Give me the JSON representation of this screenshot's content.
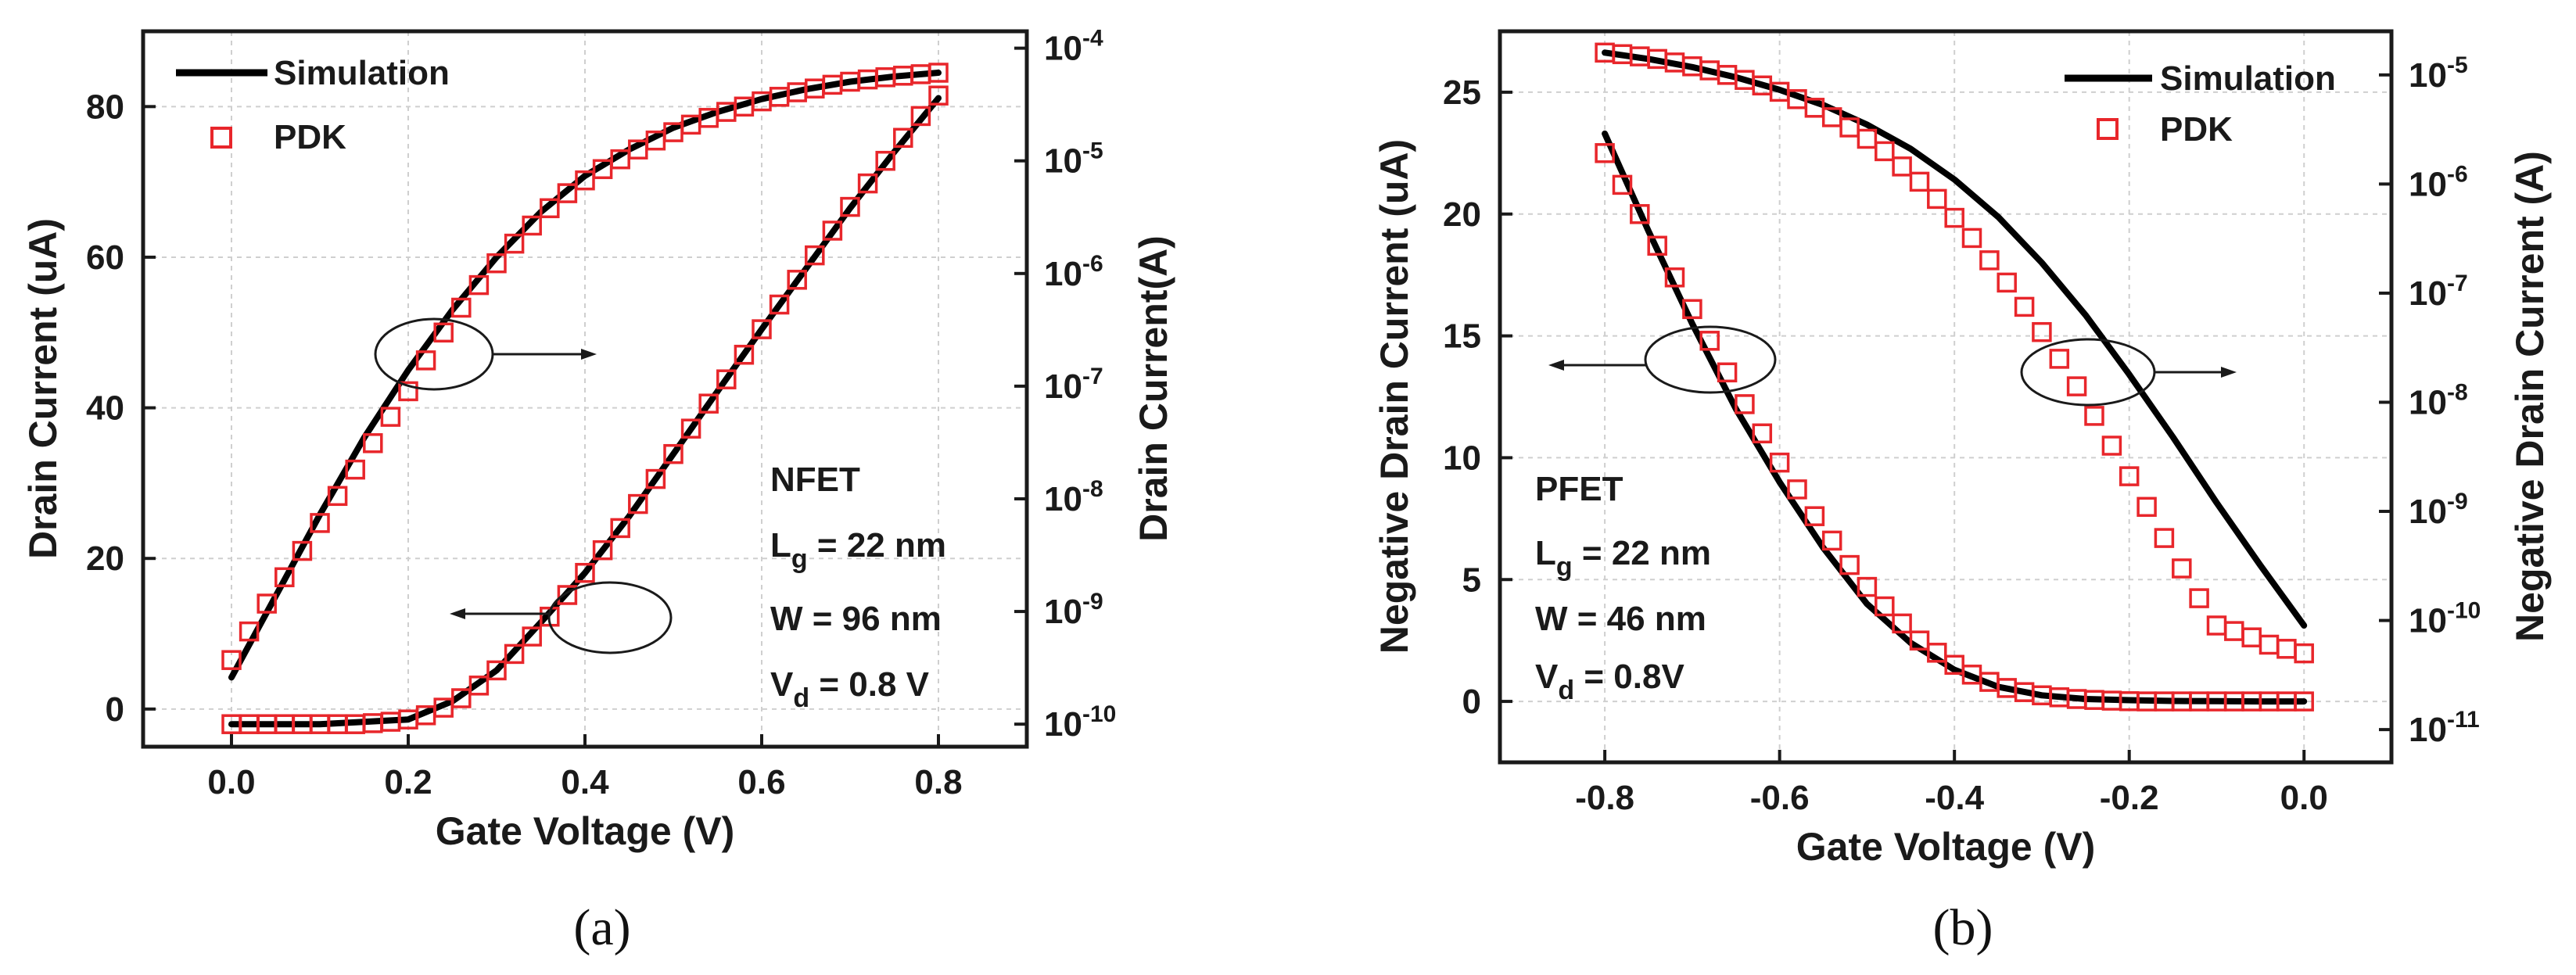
{
  "chart_data": [
    {
      "type": "line",
      "caption": "(a)",
      "xlabel": "Gate Voltage (V)",
      "ylabel_left": "Drain Current (uA)",
      "ylabel_right": "Drain Current(A)",
      "xlim": [
        -0.1,
        0.9
      ],
      "ylim_left": [
        -5,
        90
      ],
      "ylim_right_log": [
        -10.2,
        -3.85
      ],
      "x_ticks": [
        "0.0",
        "0.2",
        "0.4",
        "0.6",
        "0.8"
      ],
      "y_ticks_left": [
        "0",
        "20",
        "40",
        "60",
        "80"
      ],
      "y_ticks_right_exponents": [
        "-10",
        "-9",
        "-8",
        "-7",
        "-6",
        "-5",
        "-4"
      ],
      "log_tick_base": "10",
      "grid": true,
      "legend": {
        "position": "top-left",
        "entries": [
          "Simulation",
          "PDK"
        ]
      },
      "annotations": [
        {
          "text": "NFET"
        },
        {
          "text_main": "L",
          "text_sub": "g",
          "text_rest": " = 22 nm"
        },
        {
          "text": "W = 96 nm"
        },
        {
          "text_main": "V",
          "text_sub": "d",
          "text_rest": " = 0.8 V"
        }
      ],
      "series": [
        {
          "name": "Simulation",
          "axis": "left",
          "style": "line",
          "color": "#000000",
          "x": [
            0.0,
            0.05,
            0.1,
            0.15,
            0.2,
            0.25,
            0.3,
            0.35,
            0.4,
            0.45,
            0.5,
            0.55,
            0.6,
            0.65,
            0.7,
            0.75,
            0.8
          ],
          "y": [
            4.2,
            15.0,
            25.8,
            36.0,
            45.0,
            53.0,
            60.0,
            66.0,
            70.8,
            74.3,
            77.2,
            79.3,
            81.0,
            82.3,
            83.3,
            84.0,
            84.5
          ]
        },
        {
          "name": "PDK",
          "axis": "left",
          "style": "markers",
          "color": "#e8262b",
          "x": [
            0.0,
            0.02,
            0.04,
            0.06,
            0.08,
            0.1,
            0.12,
            0.14,
            0.16,
            0.18,
            0.2,
            0.22,
            0.24,
            0.26,
            0.28,
            0.3,
            0.32,
            0.34,
            0.36,
            0.38,
            0.4,
            0.42,
            0.44,
            0.46,
            0.48,
            0.5,
            0.52,
            0.54,
            0.56,
            0.58,
            0.6,
            0.62,
            0.64,
            0.66,
            0.68,
            0.7,
            0.72,
            0.74,
            0.76,
            0.78,
            0.8
          ],
          "y": [
            6.5,
            10.3,
            14.0,
            17.5,
            21.0,
            24.7,
            28.3,
            31.8,
            35.3,
            38.8,
            42.2,
            46.3,
            50.0,
            53.3,
            56.3,
            59.2,
            61.8,
            64.2,
            66.5,
            68.5,
            70.2,
            71.7,
            73.0,
            74.3,
            75.5,
            76.6,
            77.6,
            78.5,
            79.3,
            80.0,
            80.7,
            81.3,
            81.9,
            82.4,
            82.9,
            83.3,
            83.6,
            83.9,
            84.1,
            84.3,
            84.5
          ]
        },
        {
          "name": "Simulation",
          "axis": "right",
          "style": "line",
          "color": "#000000",
          "x": [
            0.0,
            0.1,
            0.2,
            0.25,
            0.3,
            0.35,
            0.4,
            0.45,
            0.5,
            0.55,
            0.6,
            0.65,
            0.7,
            0.75,
            0.8
          ],
          "y": [
            1e-10,
            1e-10,
            1.1e-10,
            1.6e-10,
            3e-10,
            8e-10,
            2.2e-09,
            7e-09,
            2.5e-08,
            9e-08,
            3.2e-07,
            1.1e-06,
            3.8e-06,
            1.2e-05,
            3.6e-05
          ]
        },
        {
          "name": "PDK",
          "axis": "right",
          "style": "markers",
          "color": "#e8262b",
          "x": [
            0.0,
            0.02,
            0.04,
            0.06,
            0.08,
            0.1,
            0.12,
            0.14,
            0.16,
            0.18,
            0.2,
            0.22,
            0.24,
            0.26,
            0.28,
            0.3,
            0.32,
            0.34,
            0.36,
            0.38,
            0.4,
            0.42,
            0.44,
            0.46,
            0.48,
            0.5,
            0.52,
            0.54,
            0.56,
            0.58,
            0.6,
            0.62,
            0.64,
            0.66,
            0.68,
            0.7,
            0.72,
            0.74,
            0.76,
            0.78,
            0.8
          ],
          "y": [
            1e-10,
            1e-10,
            1e-10,
            1e-10,
            1e-10,
            1e-10,
            1e-10,
            1e-10,
            1.02e-10,
            1.05e-10,
            1.1e-10,
            1.2e-10,
            1.4e-10,
            1.7e-10,
            2.2e-10,
            3e-10,
            4.2e-10,
            6e-10,
            9e-10,
            1.4e-09,
            2.2e-09,
            3.5e-09,
            5.5e-09,
            9e-09,
            1.5e-08,
            2.5e-08,
            4.2e-08,
            7e-08,
            1.15e-07,
            1.9e-07,
            3.2e-07,
            5.3e-07,
            8.8e-07,
            1.45e-06,
            2.4e-06,
            3.9e-06,
            6.3e-06,
            1e-05,
            1.6e-05,
            2.5e-05,
            3.8e-05
          ]
        }
      ]
    },
    {
      "type": "line",
      "caption": "(b)",
      "xlabel": "Gate Voltage (V)",
      "ylabel_left": "Negative Drain Current (uA)",
      "ylabel_right": "Negative Drain Current (A)",
      "xlim": [
        -0.92,
        0.1
      ],
      "ylim_left": [
        -2.5,
        27.5
      ],
      "ylim_right_log": [
        -11.3,
        -4.6
      ],
      "x_ticks": [
        "-0.8",
        "-0.6",
        "-0.4",
        "-0.2",
        "0.0"
      ],
      "y_ticks_left": [
        "0",
        "5",
        "10",
        "15",
        "20",
        "25"
      ],
      "y_ticks_right_exponents": [
        "-11",
        "-10",
        "-9",
        "-8",
        "-7",
        "-6",
        "-5"
      ],
      "log_tick_base": "10",
      "grid": true,
      "legend": {
        "position": "top-right",
        "entries": [
          "Simulation",
          "PDK"
        ]
      },
      "annotations": [
        {
          "text": "PFET"
        },
        {
          "text_main": "L",
          "text_sub": "g",
          "text_rest": " = 22 nm"
        },
        {
          "text": "W = 46 nm"
        },
        {
          "text_main": "V",
          "text_sub": "d",
          "text_rest": " = 0.8V"
        }
      ],
      "series": [
        {
          "name": "Simulation",
          "axis": "left",
          "style": "line",
          "color": "#000000",
          "x": [
            -0.8,
            -0.75,
            -0.7,
            -0.65,
            -0.6,
            -0.55,
            -0.5,
            -0.45,
            -0.4,
            -0.35,
            -0.3,
            -0.25,
            -0.2,
            -0.15,
            -0.1,
            -0.05,
            0.0
          ],
          "y": [
            23.3,
            19.3,
            15.5,
            12.0,
            9.0,
            6.3,
            4.0,
            2.4,
            1.3,
            0.6,
            0.25,
            0.1,
            0.05,
            0.02,
            0.01,
            0.0,
            0.0
          ]
        },
        {
          "name": "PDK",
          "axis": "left",
          "style": "markers",
          "color": "#e8262b",
          "x": [
            -0.8,
            -0.78,
            -0.76,
            -0.74,
            -0.72,
            -0.7,
            -0.68,
            -0.66,
            -0.64,
            -0.62,
            -0.6,
            -0.58,
            -0.56,
            -0.54,
            -0.52,
            -0.5,
            -0.48,
            -0.46,
            -0.44,
            -0.42,
            -0.4,
            -0.38,
            -0.36,
            -0.34,
            -0.32,
            -0.3,
            -0.28,
            -0.26,
            -0.24,
            -0.22,
            -0.2,
            -0.18,
            -0.16,
            -0.14,
            -0.12,
            -0.1,
            -0.08,
            -0.06,
            -0.04,
            -0.02,
            0.0
          ],
          "y": [
            22.5,
            21.2,
            20.0,
            18.7,
            17.4,
            16.1,
            14.8,
            13.5,
            12.2,
            11.0,
            9.8,
            8.7,
            7.6,
            6.6,
            5.6,
            4.7,
            3.9,
            3.2,
            2.5,
            2.0,
            1.5,
            1.1,
            0.8,
            0.55,
            0.38,
            0.25,
            0.17,
            0.1,
            0.06,
            0.03,
            0.01,
            0.0,
            0.0,
            0.0,
            0.0,
            0.0,
            0.0,
            0.0,
            0.0,
            0.0,
            0.0
          ]
        },
        {
          "name": "Simulation",
          "axis": "right",
          "style": "line",
          "color": "#000000",
          "x": [
            -0.8,
            -0.75,
            -0.7,
            -0.65,
            -0.6,
            -0.55,
            -0.5,
            -0.45,
            -0.4,
            -0.35,
            -0.3,
            -0.25,
            -0.2,
            -0.15,
            -0.1,
            -0.05,
            0.0
          ],
          "y": [
            1.6e-05,
            1.4e-05,
            1.18e-05,
            9.5e-06,
            7.3e-06,
            5.3e-06,
            3.5e-06,
            2.1e-06,
            1.1e-06,
            5e-07,
            1.9e-07,
            6.3e-08,
            1.8e-08,
            4.8e-09,
            1.2e-09,
            3.2e-10,
            9e-11
          ]
        },
        {
          "name": "PDK",
          "axis": "right",
          "style": "markers",
          "color": "#e8262b",
          "x": [
            -0.8,
            -0.78,
            -0.76,
            -0.74,
            -0.72,
            -0.7,
            -0.68,
            -0.66,
            -0.64,
            -0.62,
            -0.6,
            -0.58,
            -0.56,
            -0.54,
            -0.52,
            -0.5,
            -0.48,
            -0.46,
            -0.44,
            -0.42,
            -0.4,
            -0.38,
            -0.36,
            -0.34,
            -0.32,
            -0.3,
            -0.28,
            -0.26,
            -0.24,
            -0.22,
            -0.2,
            -0.18,
            -0.16,
            -0.14,
            -0.12,
            -0.1,
            -0.08,
            -0.06,
            -0.04,
            -0.02,
            0.0
          ],
          "y": [
            1.6e-05,
            1.55e-05,
            1.48e-05,
            1.4e-05,
            1.3e-05,
            1.2e-05,
            1.1e-05,
            1e-05,
            9e-06,
            8e-06,
            7e-06,
            6e-06,
            5e-06,
            4.1e-06,
            3.3e-06,
            2.6e-06,
            2e-06,
            1.45e-06,
            1.05e-06,
            7.3e-07,
            4.9e-07,
            3.2e-07,
            2e-07,
            1.25e-07,
            7.5e-08,
            4.4e-08,
            2.5e-08,
            1.4e-08,
            7.5e-09,
            4e-09,
            2.1e-09,
            1.1e-09,
            5.7e-10,
            3e-10,
            1.6e-10,
            9e-11,
            8e-11,
            7e-11,
            6e-11,
            5.5e-11,
            5e-11
          ]
        }
      ]
    }
  ]
}
